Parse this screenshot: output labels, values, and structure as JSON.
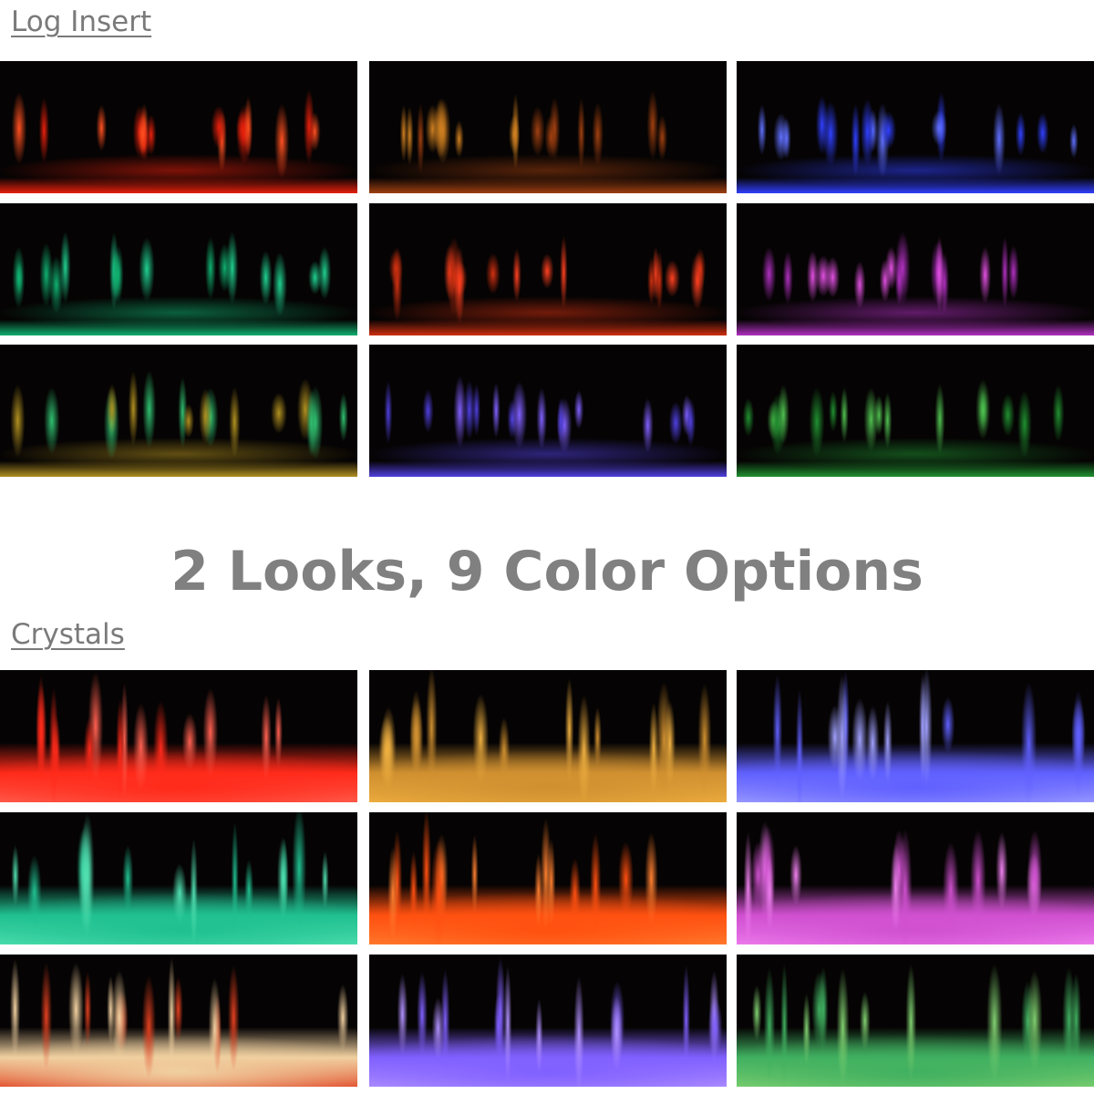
{
  "log_insert_label": "Log Insert",
  "headline": "2 Looks, 9 Color Options",
  "crystals_label": "Crystals"
}
